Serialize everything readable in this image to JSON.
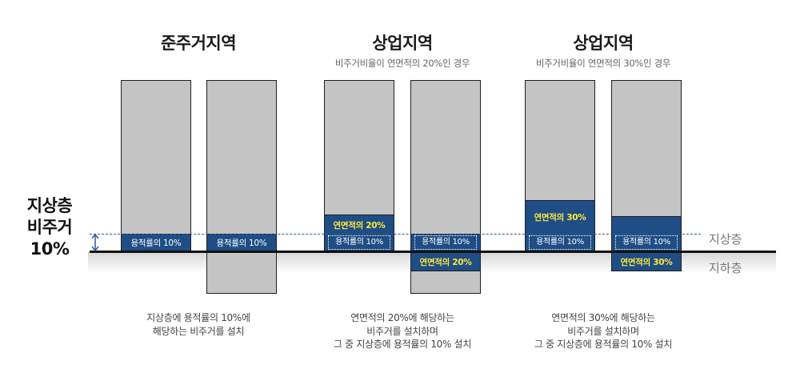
{
  "left_label": {
    "line1": "지상층",
    "line2": "비주거",
    "line3": "10%"
  },
  "levels": {
    "above": "지상층",
    "below": "지하층"
  },
  "panels": [
    {
      "title": "준주거지역",
      "subtitle": "",
      "band_label_a": "용적률의 10%",
      "band_label_b": "용적률의 10%",
      "desc": [
        "지상층에 용적률의 10%에",
        "해당하는 비주거를 설치"
      ]
    },
    {
      "title": "상업지역",
      "subtitle": "비주거비율이 연면적의 20%인 경우",
      "label_above": "연면적의 20%",
      "dotted_a": "용적률의 10%",
      "dotted_b": "용적률의 10%",
      "label_below": "연면적의 20%",
      "desc": [
        "연면적의 20%에 해당하는",
        "비주거를 설치하며",
        "그 중 지상층에 용적률의 10% 설치"
      ]
    },
    {
      "title": "상업지역",
      "subtitle": "비주거비율이 연면적의 30%인 경우",
      "label_above": "연면적의 30%",
      "dotted_a": "용적률의 10%",
      "dotted_b": "용적률의 10%",
      "label_below": "연면적의 30%",
      "desc": [
        "연면적의 30%에 해당하는",
        "비주거를 설치하며",
        "그 중 지상층에 용적률의 10% 설치"
      ]
    }
  ],
  "colors": {
    "building": "#c4c4c4",
    "band": "#1f4d85",
    "highlight": "#ffe83a",
    "ground_line": "#111111"
  }
}
